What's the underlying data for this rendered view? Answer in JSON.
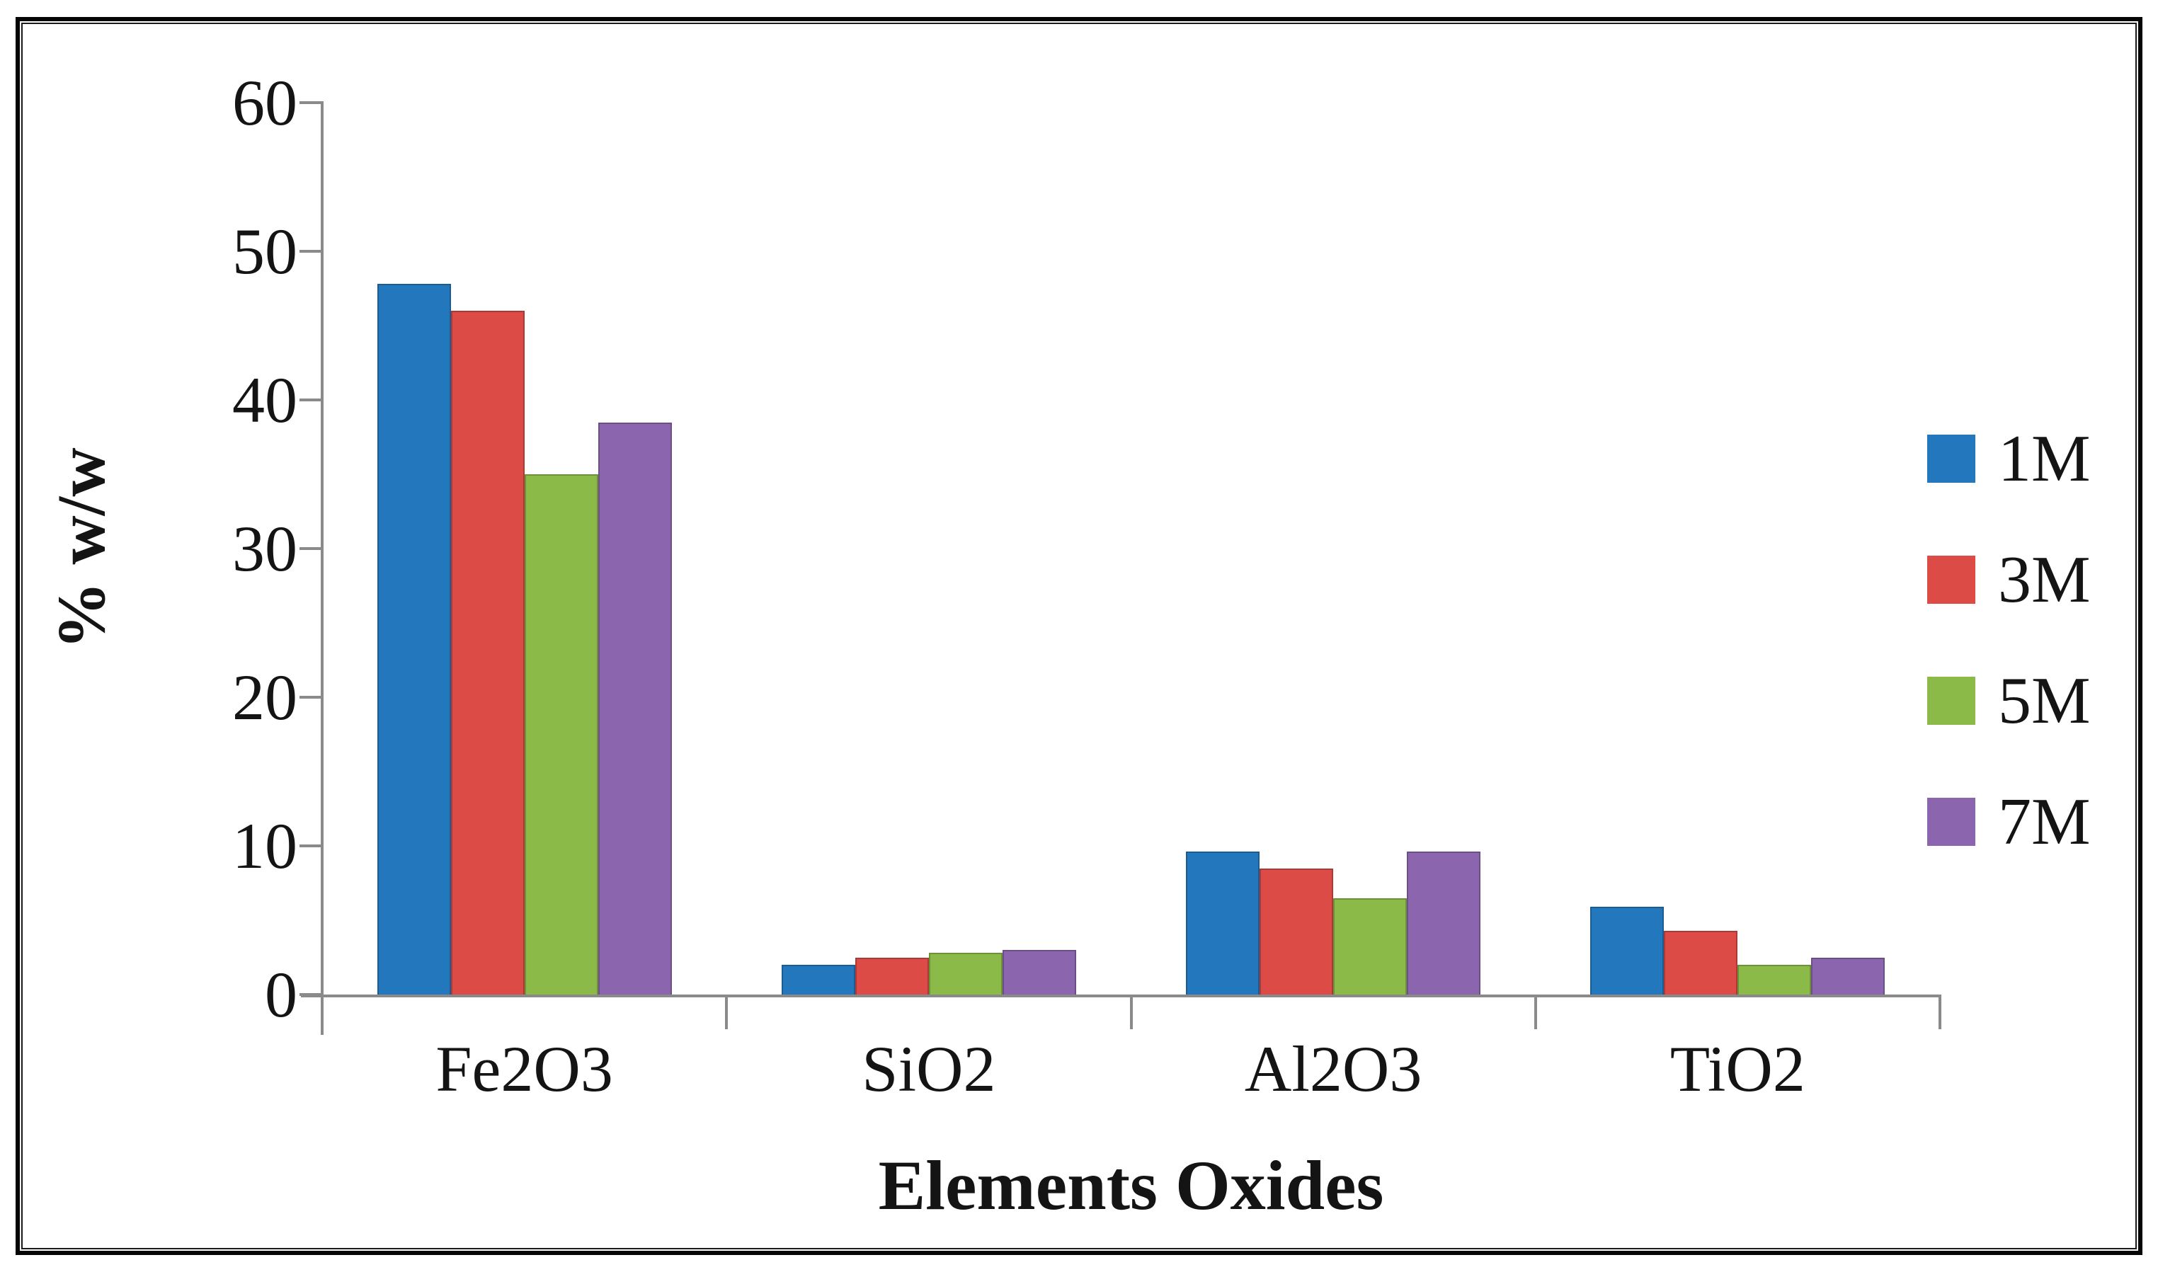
{
  "chart_data": {
    "type": "bar",
    "categories": [
      "Fe2O3",
      "SiO2",
      "Al2O3",
      "TiO2"
    ],
    "series": [
      {
        "name": "1M",
        "color": "#2377BD",
        "values": [
          47.8,
          2.0,
          9.6,
          5.9
        ]
      },
      {
        "name": "3M",
        "color": "#DC4B46",
        "values": [
          46.0,
          2.5,
          8.5,
          4.3
        ]
      },
      {
        "name": "5M",
        "color": "#8CBA49",
        "values": [
          35.0,
          2.8,
          6.5,
          2.0
        ]
      },
      {
        "name": "7M",
        "color": "#8B66AE",
        "values": [
          38.5,
          3.0,
          9.6,
          2.5
        ]
      }
    ],
    "title": "",
    "xlabel": "Elements Oxides",
    "ylabel": "% w/w",
    "ylim": [
      0,
      60
    ],
    "yticks": [
      0,
      10,
      20,
      30,
      40,
      50,
      60
    ],
    "grid": false,
    "legend_position": "right",
    "axis_color": "#8a8a8a",
    "text_color": "#141414",
    "frame_color": "#060606"
  }
}
